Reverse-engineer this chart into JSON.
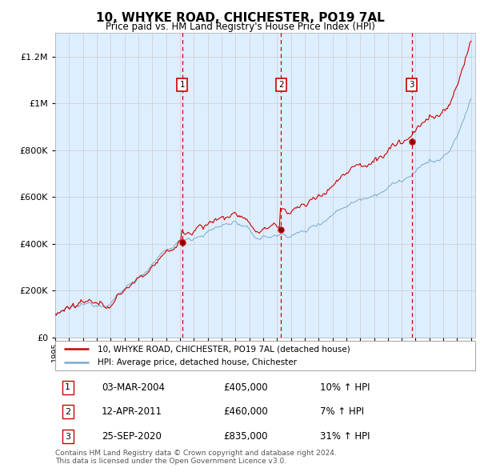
{
  "title": "10, WHYKE ROAD, CHICHESTER, PO19 7AL",
  "subtitle": "Price paid vs. HM Land Registry's House Price Index (HPI)",
  "ylim": [
    0,
    1300000
  ],
  "yticks": [
    0,
    200000,
    400000,
    600000,
    800000,
    1000000,
    1200000
  ],
  "ytick_labels": [
    "£0",
    "£200K",
    "£400K",
    "£600K",
    "£800K",
    "£1M",
    "£1.2M"
  ],
  "sale_dates_decimal": [
    2004.17,
    2011.28,
    2020.73
  ],
  "sale_prices": [
    405000,
    460000,
    835000
  ],
  "sale_labels": [
    "1",
    "2",
    "3"
  ],
  "sale_pct": [
    "10%",
    "7%",
    "31%"
  ],
  "sale_date_str": [
    "03-MAR-2004",
    "12-APR-2011",
    "25-SEP-2020"
  ],
  "legend_label_red": "10, WHYKE ROAD, CHICHESTER, PO19 7AL (detached house)",
  "legend_label_blue": "HPI: Average price, detached house, Chichester",
  "footer": "Contains HM Land Registry data © Crown copyright and database right 2024.\nThis data is licensed under the Open Government Licence v3.0.",
  "red_color": "#cc0000",
  "blue_color": "#7aaacc",
  "shading_color": "#ddeeff",
  "grid_color": "#cccccc",
  "background_color": "#ffffff"
}
